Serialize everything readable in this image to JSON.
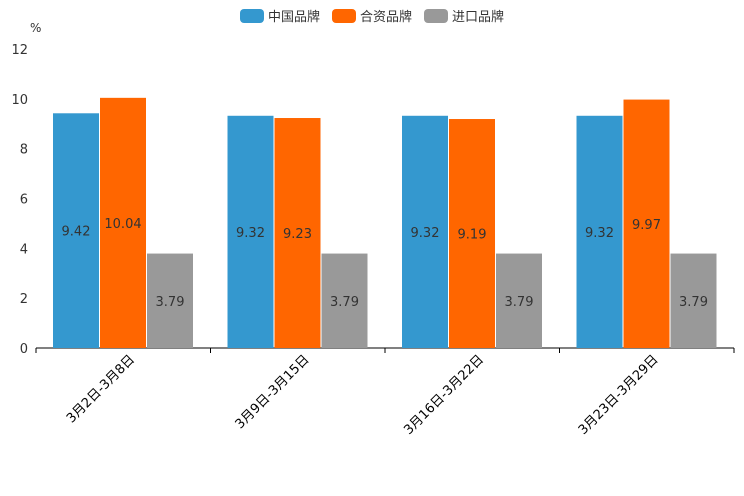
{
  "chart_data": {
    "type": "bar",
    "title": "",
    "unit": "%",
    "xlabel": "",
    "ylabel": "%",
    "ylim": [
      0,
      12
    ],
    "yticks": [
      0,
      2,
      4,
      6,
      8,
      10,
      12
    ],
    "categories": [
      "3月2日-3月8日",
      "3月9日-3月15日",
      "3月16日-3月22日",
      "3月23日-3月29日"
    ],
    "series": [
      {
        "name": "中国品牌",
        "color": "#3498cf",
        "values": [
          9.42,
          9.32,
          9.32,
          9.32
        ]
      },
      {
        "name": "合资品牌",
        "color": "#ff6600",
        "values": [
          10.04,
          9.23,
          9.19,
          9.97
        ]
      },
      {
        "name": "进口品牌",
        "color": "#999999",
        "values": [
          3.79,
          3.79,
          3.79,
          3.79
        ]
      }
    ],
    "legend_position": "top-center"
  }
}
